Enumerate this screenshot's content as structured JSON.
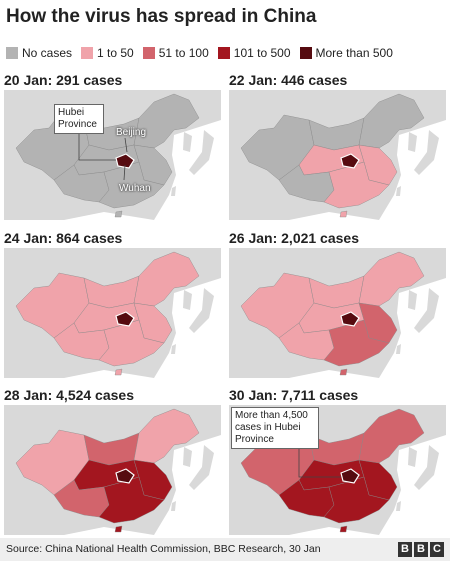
{
  "title": "How the virus has spread in China",
  "legend": [
    {
      "label": "No cases",
      "color": "#b3b3b3"
    },
    {
      "label": "1 to 50",
      "color": "#f0a3aa"
    },
    {
      "label": "51 to 100",
      "color": "#d2646c"
    },
    {
      "label": "101 to 500",
      "color": "#a3161f"
    },
    {
      "label": "More than 500",
      "color": "#560b10"
    }
  ],
  "panels": [
    {
      "title": "20 Jan: 291 cases",
      "annotations": [
        "Hubei Province",
        "Beijing",
        "Wuhan"
      ]
    },
    {
      "title": "22 Jan: 446 cases",
      "annotations": []
    },
    {
      "title": "24 Jan: 864 cases",
      "annotations": []
    },
    {
      "title": "26 Jan: 2,021 cases",
      "annotations": []
    },
    {
      "title": "28 Jan: 4,524 cases",
      "annotations": []
    },
    {
      "title": "30 Jan: 7,711 cases",
      "annotations": [
        "More than 4,500 cases in Hubei Province"
      ]
    }
  ],
  "source": "Source: China National Health Commission, BBC Research, 30 Jan",
  "logo": [
    "B",
    "B",
    "C"
  ]
}
